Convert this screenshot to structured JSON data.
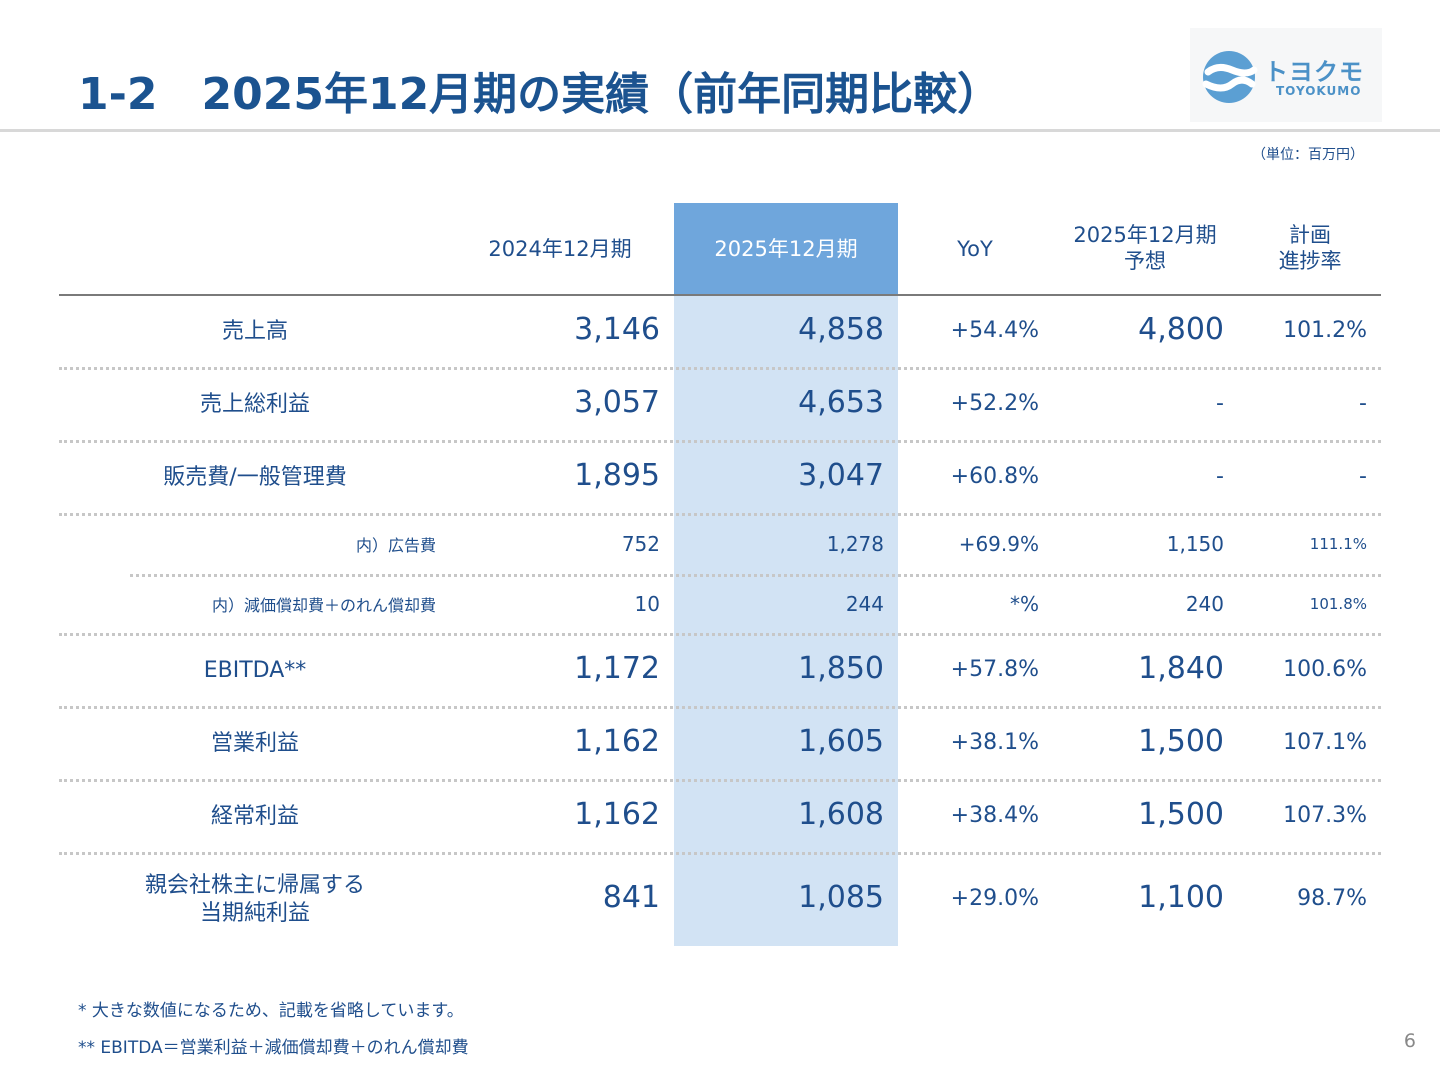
{
  "header": {
    "title": "1-2　2025年12月期の実績（前年同期比較）",
    "logo_kana": "トヨクモ",
    "logo_latin": "TOYOKUMO",
    "unit": "（単位：百万円）"
  },
  "columns": {
    "prev": "2024年12月期",
    "curr": "2025年12月期",
    "yoy": "YoY",
    "forecast_line1": "2025年12月期",
    "forecast_line2": "予想",
    "progress_line1": "計画",
    "progress_line2": "進捗率"
  },
  "rows": [
    {
      "label": "売上高",
      "prev": "3,146",
      "curr": "4,858",
      "yoy": "+54.4%",
      "forecast": "4,800",
      "progress": "101.2%"
    },
    {
      "label": "売上総利益",
      "prev": "3,057",
      "curr": "4,653",
      "yoy": "+52.2%",
      "forecast": "-",
      "progress": "-"
    },
    {
      "label": "販売費/一般管理費",
      "prev": "1,895",
      "curr": "3,047",
      "yoy": "+60.8%",
      "forecast": "-",
      "progress": "-"
    },
    {
      "label": "内）広告費",
      "prev": "752",
      "curr": "1,278",
      "yoy": "+69.9%",
      "forecast": "1,150",
      "progress": "111.1%"
    },
    {
      "label": "内）減価償却費＋のれん償却費",
      "prev": "10",
      "curr": "244",
      "yoy": "*%",
      "forecast": "240",
      "progress": "101.8%"
    },
    {
      "label": "EBITDA**",
      "prev": "1,172",
      "curr": "1,850",
      "yoy": "+57.8%",
      "forecast": "1,840",
      "progress": "100.6%"
    },
    {
      "label": "営業利益",
      "prev": "1,162",
      "curr": "1,605",
      "yoy": "+38.1%",
      "forecast": "1,500",
      "progress": "107.1%"
    },
    {
      "label": "経常利益",
      "prev": "1,162",
      "curr": "1,608",
      "yoy": "+38.4%",
      "forecast": "1,500",
      "progress": "107.3%"
    },
    {
      "label_line1": "親会社株主に帰属する",
      "label_line2": "当期純利益",
      "prev": "841",
      "curr": "1,085",
      "yoy": "+29.0%",
      "forecast": "1,100",
      "progress": "98.7%"
    }
  ],
  "notes": {
    "note1": "* 大きな数値になるため、記載を省略しています。",
    "note2": "** EBITDA＝営業利益＋減価償却費＋のれん償却費"
  },
  "page_number": "6",
  "colors": {
    "title": "#1b5390",
    "text": "#1f4e8c",
    "highlight_header": "#6fa6dc",
    "highlight_column": "#d2e3f4"
  }
}
